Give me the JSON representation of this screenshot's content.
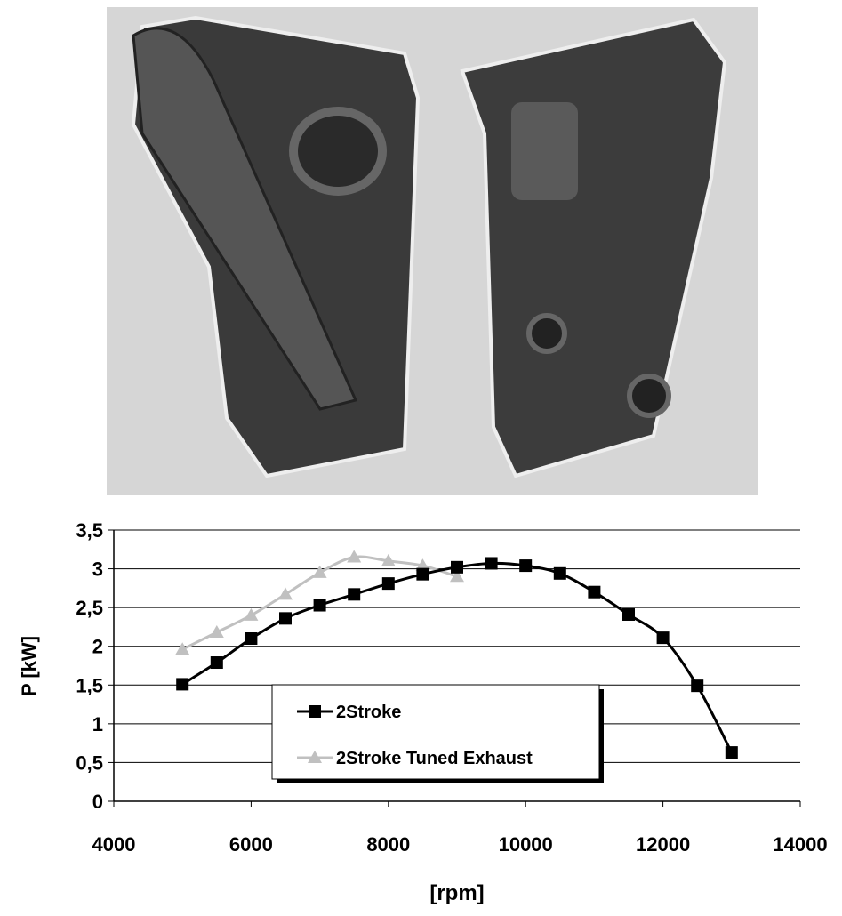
{
  "chart_data": {
    "type": "line",
    "x_label": "[rpm]",
    "y_label": "P [kW]",
    "xlim": [
      4000,
      14000
    ],
    "xticks": [
      4000,
      6000,
      8000,
      10000,
      12000,
      14000
    ],
    "ylim": [
      0,
      3.5
    ],
    "yticks": [
      0,
      {
        "value": 0.5,
        "label": "0,5"
      },
      1,
      {
        "value": 1.5,
        "label": "1,5"
      },
      2,
      {
        "value": 2.5,
        "label": "2,5"
      },
      3,
      {
        "value": 3.5,
        "label": "3,5"
      }
    ],
    "grid": true,
    "series": [
      {
        "name": "2Stroke",
        "color": "#000000",
        "marker": "square",
        "x": [
          5000,
          5500,
          6000,
          6500,
          7000,
          7500,
          8000,
          8500,
          9000,
          9500,
          10000,
          10500,
          11000,
          11500,
          12000,
          12500,
          13000
        ],
        "values": [
          1.51,
          1.79,
          2.1,
          2.36,
          2.53,
          2.67,
          2.81,
          2.93,
          3.02,
          3.07,
          3.04,
          2.94,
          2.7,
          2.41,
          2.11,
          1.49,
          0.63
        ]
      },
      {
        "name": "2Stroke Tuned Exhaust",
        "color": "#c0c0c0",
        "marker": "triangle",
        "x": [
          5000,
          5500,
          6000,
          6500,
          7000,
          7500,
          8000,
          8500,
          9000
        ],
        "values": [
          1.96,
          2.18,
          2.4,
          2.67,
          2.95,
          3.15,
          3.1,
          3.04,
          2.9
        ]
      }
    ]
  }
}
